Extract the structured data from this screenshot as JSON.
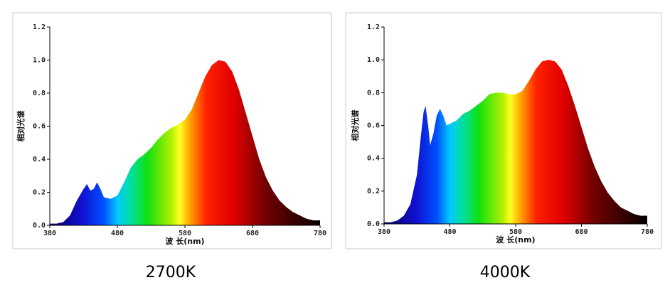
{
  "chart_data": [
    {
      "type": "area",
      "title": "2700K",
      "x_label": "波 长(nm)",
      "y_label": "相对光谱",
      "xlim": [
        380,
        780
      ],
      "xticks": [
        380,
        480,
        580,
        680,
        780
      ],
      "ylim": [
        0,
        1.2
      ],
      "yticks": [
        {
          "value": 0,
          "label": "0.0"
        },
        0.2,
        0.4,
        0.6,
        0.8,
        {
          "value": 1,
          "label": "1.0"
        },
        1.2
      ],
      "x": [
        380,
        390,
        400,
        410,
        420,
        430,
        435,
        440,
        445,
        450,
        455,
        460,
        470,
        480,
        490,
        500,
        510,
        520,
        530,
        540,
        550,
        560,
        570,
        580,
        590,
        600,
        610,
        620,
        630,
        640,
        650,
        660,
        670,
        680,
        690,
        700,
        710,
        720,
        730,
        740,
        750,
        760,
        770,
        780
      ],
      "values": [
        0.01,
        0.01,
        0.02,
        0.06,
        0.15,
        0.22,
        0.25,
        0.21,
        0.22,
        0.26,
        0.22,
        0.17,
        0.16,
        0.18,
        0.26,
        0.35,
        0.4,
        0.43,
        0.47,
        0.52,
        0.56,
        0.59,
        0.61,
        0.64,
        0.7,
        0.8,
        0.9,
        0.97,
        1.0,
        0.99,
        0.93,
        0.82,
        0.68,
        0.54,
        0.4,
        0.29,
        0.21,
        0.15,
        0.11,
        0.08,
        0.06,
        0.04,
        0.03,
        0.03
      ]
    },
    {
      "type": "area",
      "title": "4000K",
      "x_label": "波 长(nm)",
      "y_label": "相对光谱",
      "xlim": [
        380,
        780
      ],
      "xticks": [
        380,
        480,
        580,
        680,
        780
      ],
      "ylim": [
        0,
        1.2
      ],
      "yticks": [
        {
          "value": 0,
          "label": "0.0"
        },
        0.2,
        0.4,
        0.6,
        0.8,
        {
          "value": 1,
          "label": "1.0"
        },
        1.2
      ],
      "x": [
        380,
        390,
        400,
        410,
        420,
        430,
        435,
        440,
        443,
        447,
        450,
        455,
        460,
        465,
        470,
        475,
        480,
        490,
        500,
        510,
        520,
        530,
        540,
        550,
        560,
        570,
        580,
        590,
        600,
        610,
        620,
        630,
        640,
        650,
        660,
        670,
        680,
        690,
        700,
        710,
        720,
        730,
        740,
        750,
        760,
        770,
        780
      ],
      "values": [
        0.01,
        0.01,
        0.02,
        0.05,
        0.12,
        0.3,
        0.5,
        0.68,
        0.72,
        0.6,
        0.48,
        0.55,
        0.66,
        0.7,
        0.66,
        0.6,
        0.61,
        0.63,
        0.67,
        0.69,
        0.72,
        0.75,
        0.79,
        0.8,
        0.8,
        0.79,
        0.79,
        0.81,
        0.87,
        0.94,
        0.99,
        1.0,
        0.99,
        0.94,
        0.84,
        0.72,
        0.59,
        0.46,
        0.35,
        0.26,
        0.19,
        0.14,
        0.1,
        0.08,
        0.06,
        0.05,
        0.05
      ]
    }
  ]
}
